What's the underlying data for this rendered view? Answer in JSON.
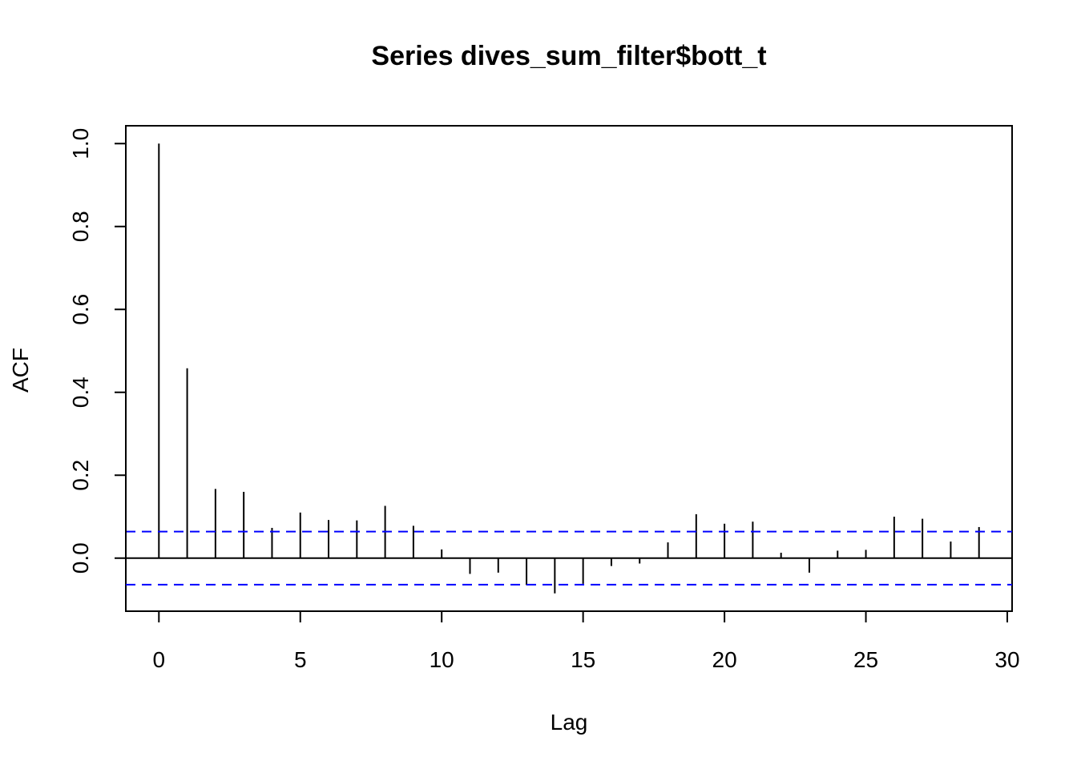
{
  "chart_data": {
    "type": "bar",
    "title": "Series  dives_sum_filter$bott_t",
    "xlabel": "Lag",
    "ylabel": "ACF",
    "xlim": [
      -1.17,
      30.17
    ],
    "ylim": [
      -0.128,
      1.043
    ],
    "x_ticks": [
      0,
      5,
      10,
      15,
      20,
      25,
      30
    ],
    "x_tick_labels": [
      "0",
      "5",
      "10",
      "15",
      "20",
      "25",
      "30"
    ],
    "y_ticks": [
      0.0,
      0.2,
      0.4,
      0.6,
      0.8,
      1.0
    ],
    "y_tick_labels": [
      "0.0",
      "0.2",
      "0.4",
      "0.6",
      "0.8",
      "1.0"
    ],
    "grid": false,
    "legend": "none",
    "colors": {
      "bars": "#000000",
      "confidence": "#0000ff",
      "axes": "#000000"
    },
    "confidence_bound": 0.064,
    "series": [
      {
        "lags": [
          0,
          1,
          2,
          3,
          4,
          5,
          6,
          7,
          8,
          9,
          10,
          11,
          12,
          13,
          14,
          15,
          16,
          17,
          18,
          19,
          20,
          21,
          22,
          23,
          24,
          25,
          26,
          27,
          28,
          29
        ],
        "values": [
          1.0,
          0.458,
          0.167,
          0.16,
          0.073,
          0.11,
          0.092,
          0.091,
          0.126,
          0.078,
          0.021,
          -0.038,
          -0.035,
          -0.065,
          -0.085,
          -0.062,
          -0.019,
          -0.013,
          0.038,
          0.106,
          0.083,
          0.088,
          0.013,
          -0.035,
          0.018,
          0.02,
          0.1,
          0.095,
          0.04,
          0.075
        ]
      }
    ]
  }
}
